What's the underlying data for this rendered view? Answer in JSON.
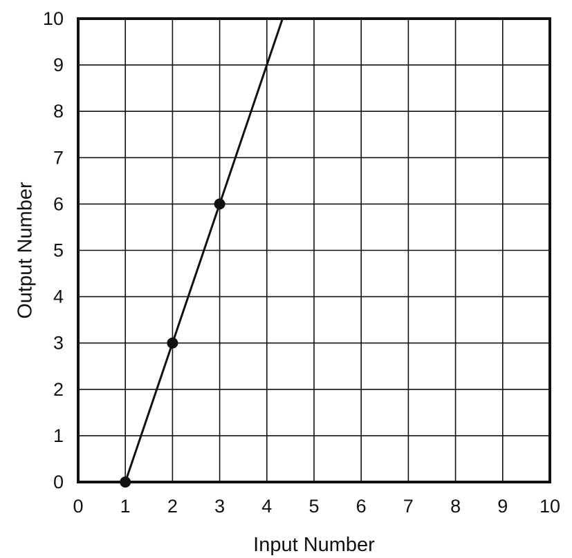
{
  "chart_data": {
    "type": "line",
    "title": "",
    "xlabel": "Input Number",
    "ylabel": "Output Number",
    "xlim": [
      0,
      10
    ],
    "ylim": [
      0,
      10
    ],
    "x_ticks": [
      "0",
      "1",
      "2",
      "3",
      "4",
      "5",
      "6",
      "7",
      "8",
      "9",
      "10"
    ],
    "y_ticks": [
      "0",
      "1",
      "2",
      "3",
      "4",
      "5",
      "6",
      "7",
      "8",
      "9",
      "10"
    ],
    "grid": true,
    "legend": "none",
    "line_color": "#111111",
    "series": [
      {
        "points": [
          {
            "x": 1,
            "y": 0
          },
          {
            "x": 2,
            "y": 3
          },
          {
            "x": 3,
            "y": 6
          }
        ],
        "line_extends_to": {
          "x": 4.333,
          "y": 10
        }
      }
    ]
  }
}
